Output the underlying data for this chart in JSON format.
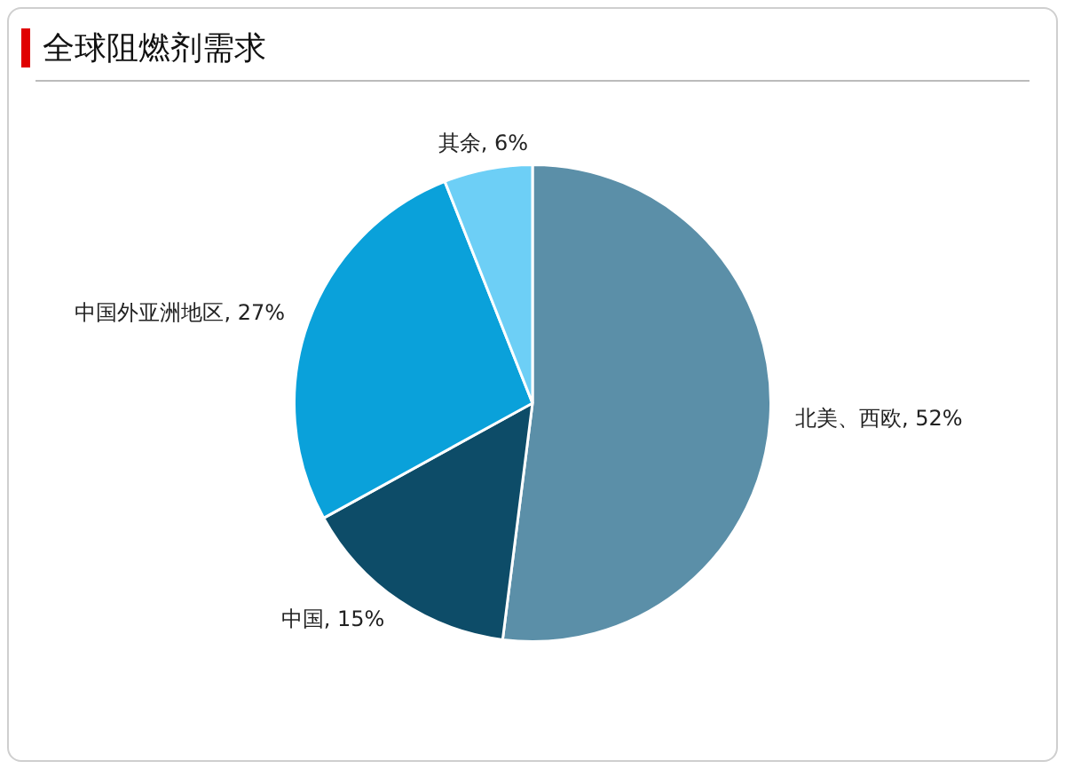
{
  "chart_data": {
    "type": "pie",
    "title": "全球阻燃剂需求",
    "categories": [
      "北美、西欧",
      "中国",
      "中国外亚洲地区",
      "其余"
    ],
    "values": [
      52,
      15,
      27,
      6
    ],
    "colors": [
      "#5b8fa8",
      "#0d4c68",
      "#0aa1da",
      "#6dcff6"
    ],
    "value_labels": [
      "52%",
      "15%",
      "27%",
      "6%"
    ],
    "legend": false
  }
}
